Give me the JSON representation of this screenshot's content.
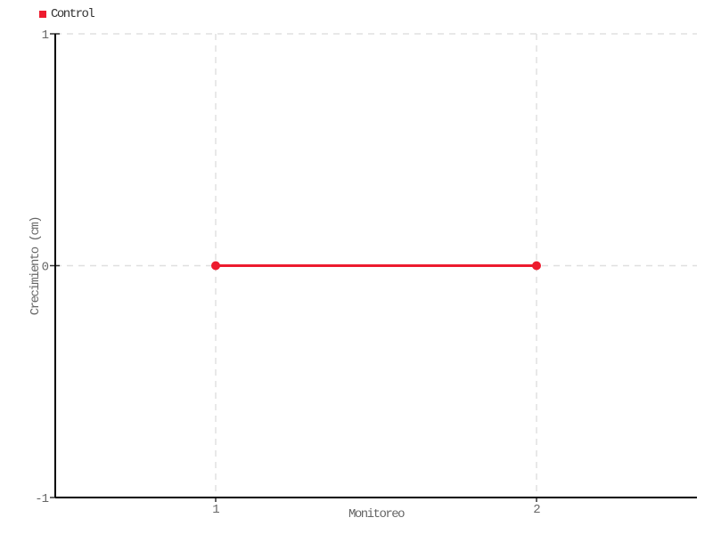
{
  "chart_data": {
    "type": "line",
    "title": "",
    "xlabel": "Monitoreo",
    "ylabel": "Crecimiento (cm)",
    "categories": [
      "1",
      "2"
    ],
    "series": [
      {
        "name": "Control",
        "color": "#ed1b2e",
        "values": [
          0,
          0
        ]
      }
    ],
    "ylim": [
      -1,
      1
    ],
    "yticks": [
      1,
      0,
      -1
    ],
    "grid": true,
    "legend_position": "top-left",
    "marker": "circle"
  },
  "colors": {
    "series_red": "#ed1b2e",
    "gridline": "#e0e0e0",
    "axis": "#000000",
    "tick_text": "#666666"
  }
}
